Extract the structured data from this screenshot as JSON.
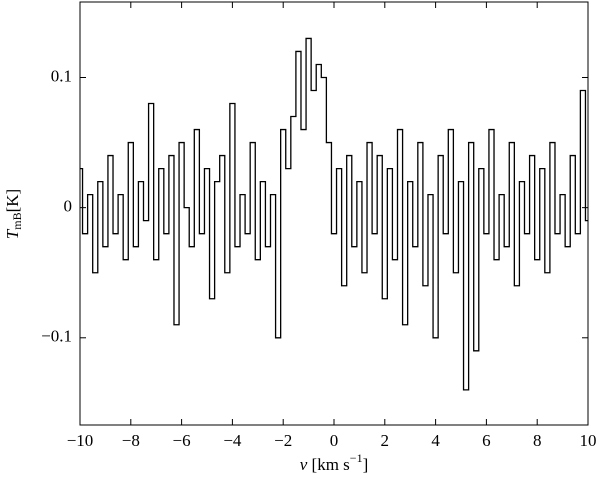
{
  "chart_data": {
    "type": "line",
    "drawstyle": "steps-mid",
    "ylabel": {
      "symbol": "T",
      "subscript": "mB",
      "unit": "[K]"
    },
    "xlabel": {
      "symbol": "v",
      "unit": "[km s",
      "superscript": "−1",
      "close": "]"
    },
    "x": [
      -10,
      -9.8,
      -9.6,
      -9.4,
      -9.2,
      -9,
      -8.8,
      -8.6,
      -8.4,
      -8.2,
      -8,
      -7.8,
      -7.6,
      -7.4,
      -7.2,
      -7,
      -6.8,
      -6.6,
      -6.4,
      -6.2,
      -6,
      -5.8,
      -5.6,
      -5.4,
      -5.2,
      -5,
      -4.8,
      -4.6,
      -4.4,
      -4.2,
      -4,
      -3.8,
      -3.6,
      -3.4,
      -3.2,
      -3,
      -2.8,
      -2.6,
      -2.4,
      -2.2,
      -2,
      -1.8,
      -1.6,
      -1.4,
      -1.2,
      -1,
      -0.8,
      -0.6,
      -0.4,
      -0.2,
      0,
      0.2,
      0.4,
      0.6,
      0.8,
      1,
      1.2,
      1.4,
      1.6,
      1.8,
      2,
      2.2,
      2.4,
      2.6,
      2.8,
      3,
      3.2,
      3.4,
      3.6,
      3.8,
      4,
      4.2,
      4.4,
      4.6,
      4.8,
      5,
      5.2,
      5.4,
      5.6,
      5.8,
      6,
      6.2,
      6.4,
      6.6,
      6.8,
      7,
      7.2,
      7.4,
      7.6,
      7.8,
      8,
      8.2,
      8.4,
      8.6,
      8.8,
      9,
      9.2,
      9.4,
      9.6,
      9.8,
      10
    ],
    "series": [
      {
        "color": "#000000",
        "values": [
          0.03,
          -0.02,
          0.01,
          -0.05,
          0.02,
          -0.03,
          0.04,
          -0.02,
          0.01,
          -0.04,
          0.05,
          -0.03,
          0.02,
          -0.01,
          0.08,
          -0.04,
          0.03,
          -0.02,
          0.04,
          -0.09,
          0.05,
          0.0,
          -0.03,
          0.06,
          -0.02,
          0.03,
          -0.07,
          0.02,
          0.04,
          -0.05,
          0.08,
          -0.03,
          0.01,
          -0.02,
          0.05,
          -0.04,
          0.02,
          -0.03,
          0.01,
          -0.1,
          0.06,
          0.03,
          0.07,
          0.12,
          0.06,
          0.13,
          0.09,
          0.11,
          0.1,
          0.05,
          -0.02,
          0.03,
          -0.06,
          0.04,
          -0.03,
          0.02,
          -0.05,
          0.05,
          -0.02,
          0.04,
          -0.07,
          0.03,
          -0.04,
          0.06,
          -0.09,
          0.02,
          -0.03,
          0.05,
          -0.06,
          0.01,
          -0.1,
          0.04,
          -0.02,
          0.06,
          -0.05,
          0.02,
          -0.14,
          0.05,
          -0.11,
          0.03,
          -0.02,
          0.06,
          -0.04,
          0.01,
          -0.03,
          0.05,
          -0.06,
          0.02,
          -0.02,
          0.04,
          -0.04,
          0.03,
          -0.05,
          0.05,
          -0.02,
          0.01,
          -0.03,
          0.04,
          -0.02,
          0.09,
          -0.01
        ]
      }
    ],
    "xlim": [
      -10,
      10
    ],
    "xticks": [
      {
        "value": -10,
        "label": "−10"
      },
      {
        "value": -8,
        "label": "−8"
      },
      {
        "value": -6,
        "label": "−6"
      },
      {
        "value": -4,
        "label": "−4"
      },
      {
        "value": -2,
        "label": "−2"
      },
      0,
      2,
      4,
      6,
      8,
      10
    ],
    "ylim": [
      -0.167,
      0.158
    ],
    "yticks": [
      {
        "value": -0.1,
        "label": "−0.1"
      },
      0,
      0.1
    ],
    "grid": false
  }
}
